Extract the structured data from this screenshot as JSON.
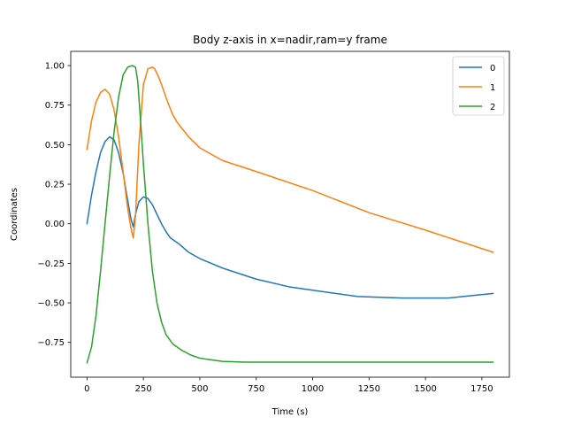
{
  "chart_data": {
    "type": "line",
    "title": "Body z-axis in x=nadir,ram=y frame",
    "xlabel": "Time (s)",
    "ylabel": "Coordinates",
    "xlim": [
      -72,
      1872
    ],
    "ylim": [
      -0.97,
      1.09
    ],
    "xticks": [
      0,
      250,
      500,
      750,
      1000,
      1250,
      1500,
      1750
    ],
    "xtick_labels": [
      "0",
      "250",
      "500",
      "750",
      "1000",
      "1250",
      "1500",
      "1750"
    ],
    "yticks": [
      -0.75,
      -0.5,
      -0.25,
      0.0,
      0.25,
      0.5,
      0.75,
      1.0
    ],
    "ytick_labels": [
      "−0.75",
      "−0.50",
      "−0.25",
      "0.00",
      "0.25",
      "0.50",
      "0.75",
      "1.00"
    ],
    "grid": false,
    "legend_position": "top-right",
    "series": [
      {
        "name": "0",
        "color": "#1f77b4",
        "x": [
          0,
          20,
          40,
          60,
          80,
          100,
          120,
          140,
          160,
          180,
          195,
          205,
          215,
          230,
          250,
          270,
          290,
          310,
          330,
          350,
          370,
          390,
          410,
          450,
          500,
          600,
          750,
          900,
          1000,
          1200,
          1400,
          1600,
          1800
        ],
        "y": [
          0.0,
          0.18,
          0.33,
          0.45,
          0.52,
          0.55,
          0.53,
          0.45,
          0.32,
          0.15,
          0.03,
          -0.02,
          0.06,
          0.14,
          0.17,
          0.16,
          0.12,
          0.06,
          0.0,
          -0.05,
          -0.09,
          -0.11,
          -0.13,
          -0.18,
          -0.22,
          -0.28,
          -0.35,
          -0.4,
          -0.42,
          -0.46,
          -0.47,
          -0.47,
          -0.44
        ]
      },
      {
        "name": "1",
        "color": "#ff7f0e",
        "x": [
          0,
          20,
          40,
          60,
          80,
          100,
          120,
          140,
          160,
          180,
          195,
          205,
          215,
          230,
          250,
          270,
          290,
          300,
          320,
          340,
          360,
          380,
          400,
          450,
          500,
          600,
          750,
          1000,
          1250,
          1500,
          1800
        ],
        "y": [
          0.47,
          0.65,
          0.77,
          0.83,
          0.85,
          0.82,
          0.72,
          0.55,
          0.33,
          0.1,
          -0.03,
          -0.09,
          0.05,
          0.5,
          0.88,
          0.98,
          0.99,
          0.98,
          0.92,
          0.84,
          0.76,
          0.69,
          0.64,
          0.55,
          0.48,
          0.4,
          0.33,
          0.21,
          0.07,
          -0.04,
          -0.18
        ]
      },
      {
        "name": "2",
        "color": "#2ca02c",
        "x": [
          0,
          20,
          40,
          60,
          80,
          100,
          120,
          140,
          160,
          180,
          200,
          215,
          225,
          235,
          250,
          270,
          290,
          310,
          330,
          350,
          380,
          420,
          460,
          500,
          550,
          600,
          700,
          800,
          1000,
          1200,
          1400,
          1600,
          1800
        ],
        "y": [
          -0.88,
          -0.78,
          -0.58,
          -0.3,
          0.0,
          0.3,
          0.58,
          0.8,
          0.94,
          0.99,
          1.0,
          0.99,
          0.9,
          0.7,
          0.38,
          0.0,
          -0.3,
          -0.5,
          -0.62,
          -0.7,
          -0.76,
          -0.8,
          -0.83,
          -0.85,
          -0.86,
          -0.87,
          -0.875,
          -0.875,
          -0.875,
          -0.875,
          -0.875,
          -0.875,
          -0.875
        ]
      }
    ]
  }
}
